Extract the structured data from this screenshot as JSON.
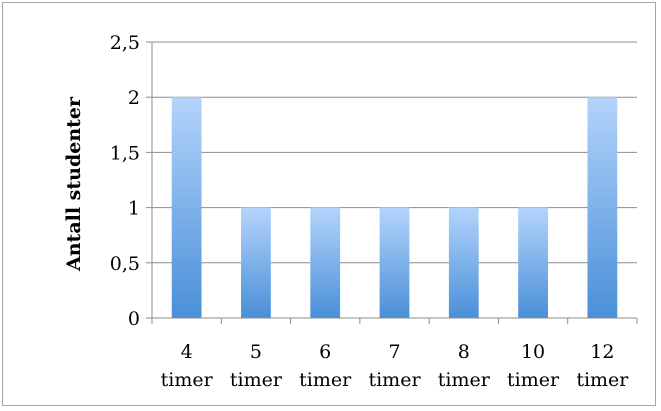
{
  "chart_data": {
    "type": "bar",
    "title": "",
    "xlabel": "",
    "ylabel": "Antall studenter",
    "categories": [
      [
        "4",
        "timer"
      ],
      [
        "5",
        "timer"
      ],
      [
        "6",
        "timer"
      ],
      [
        "7",
        "timer"
      ],
      [
        "8",
        "timer"
      ],
      [
        "10",
        "timer"
      ],
      [
        "12",
        "timer"
      ]
    ],
    "values": [
      2,
      1,
      1,
      1,
      1,
      1,
      2
    ],
    "ylim": [
      0,
      2.5
    ],
    "yticks": [
      "0",
      "0,5",
      "1",
      "1,5",
      "2",
      "2,5"
    ],
    "grid": true,
    "legend": "none",
    "colors": {
      "bar_top": "#b3d4fb",
      "bar_bottom": "#4a8fd8",
      "gridline": "#8c8c8c",
      "frame": "#a6a6a6"
    }
  }
}
